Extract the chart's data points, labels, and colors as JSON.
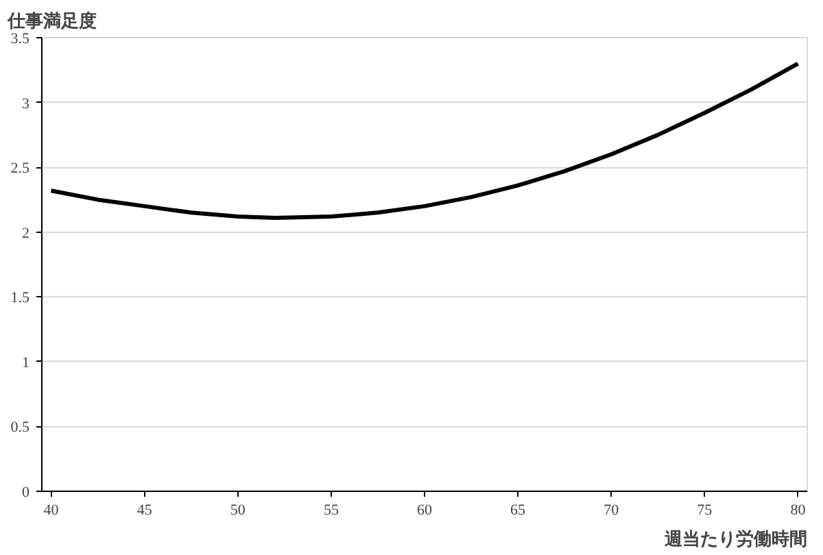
{
  "chart_data": {
    "type": "line",
    "xlabel": "週当たり労働時間",
    "ylabel": "仕事満足度",
    "x": [
      40,
      42.5,
      45,
      47.5,
      50,
      52,
      55,
      57.5,
      60,
      62.5,
      65,
      67.5,
      70,
      72.5,
      75,
      77.5,
      80
    ],
    "series": [
      {
        "color": "#000000",
        "values": [
          2.32,
          2.25,
          2.2,
          2.15,
          2.12,
          2.11,
          2.12,
          2.15,
          2.2,
          2.27,
          2.36,
          2.47,
          2.6,
          2.75,
          2.92,
          3.1,
          3.3
        ]
      }
    ],
    "xlim": [
      39.5,
      80.5
    ],
    "xticks": [
      40,
      45,
      50,
      55,
      60,
      65,
      70,
      75,
      80
    ],
    "ylim": [
      0,
      3.5
    ],
    "yticks": [
      0,
      0.5,
      1,
      1.5,
      2,
      2.5,
      3,
      3.5
    ],
    "grid": "y",
    "marker": "none",
    "line_style": "solid"
  }
}
